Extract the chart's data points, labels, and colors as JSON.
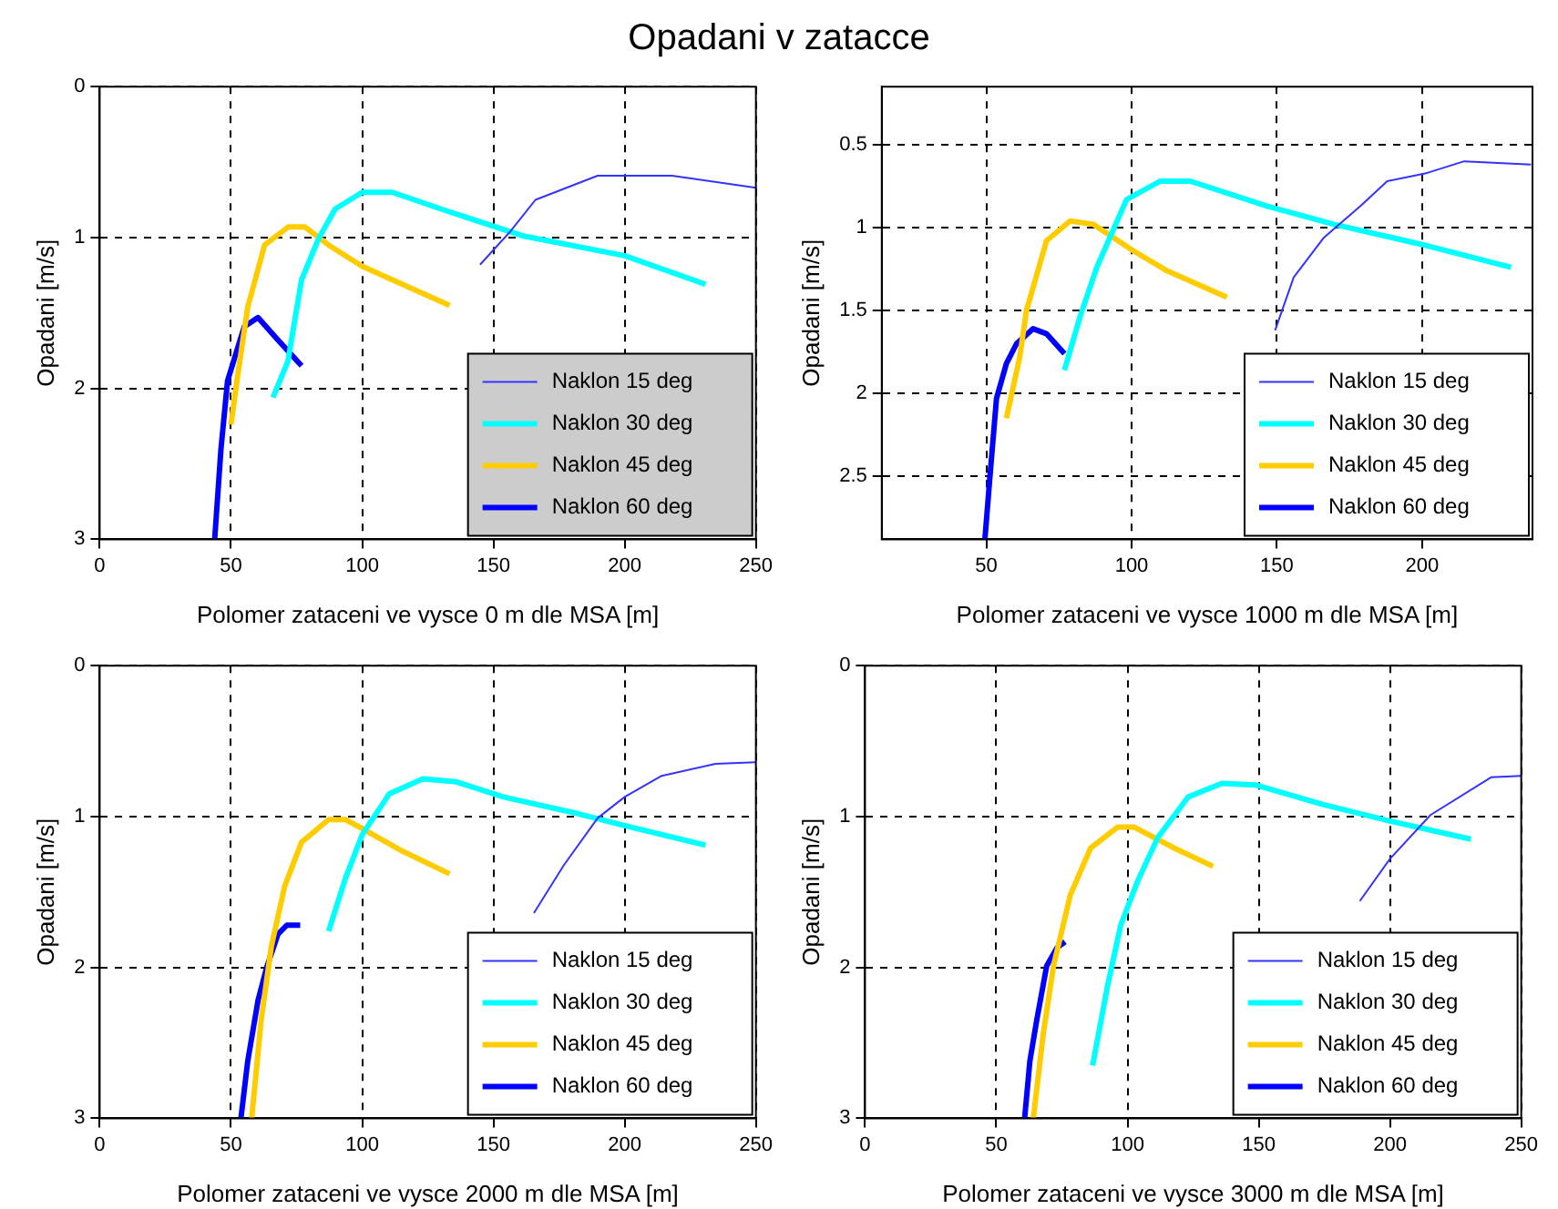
{
  "chart_data": [
    {
      "type": "line",
      "title": "Opadani v zatacce",
      "xlabel": "Polomer zataceni ve vysce 0 m dle MSA [m]",
      "ylabel": "Opadani [m/s]",
      "xlim": [
        0,
        250
      ],
      "xticks": [
        0,
        50,
        100,
        150,
        200,
        250
      ],
      "ylim": [
        3,
        0
      ],
      "yticks": [
        0,
        1,
        2,
        3
      ],
      "grid": true,
      "legend": "bottom right",
      "marker": "none",
      "line_style": "solid",
      "series": [
        {
          "name": "Naklon 15 deg",
          "color": "#3333ff",
          "x": [
            144.9,
            156.4,
            166,
            189.7,
            218,
            250
          ],
          "values": [
            1.18,
            0.96,
            0.75,
            0.59,
            0.59,
            0.67
          ]
        },
        {
          "name": "Naklon 30 deg",
          "color": "#00ffff",
          "x": [
            66,
            71.7,
            76.9,
            83.3,
            89.7,
            100,
            111.5,
            133.3,
            161.5,
            200,
            230.8
          ],
          "values": [
            2.06,
            1.82,
            1.28,
            1.01,
            0.81,
            0.7,
            0.7,
            0.83,
            0.99,
            1.12,
            1.31
          ]
        },
        {
          "name": "Naklon 45 deg",
          "color": "#ffcc00",
          "x": [
            50,
            52.6,
            56.4,
            62.8,
            71.8,
            78.2,
            87.2,
            100,
            133.3
          ],
          "values": [
            2.24,
            1.91,
            1.46,
            1.05,
            0.93,
            0.93,
            1.05,
            1.19,
            1.45
          ]
        },
        {
          "name": "Naklon 60 deg",
          "color": "#0000ff",
          "x": [
            43.8,
            46.2,
            48.7,
            52.6,
            55.1,
            60.3,
            68,
            76.9
          ],
          "values": [
            3,
            2.4,
            1.95,
            1.73,
            1.59,
            1.53,
            1.68,
            1.85
          ]
        }
      ]
    },
    {
      "type": "line",
      "xlabel": "Polomer zataceni ve vysce 1000 m dle MSA [m]",
      "ylabel": "Opadani [m/s]",
      "xlim": [
        14,
        238
      ],
      "xticks": [
        50,
        100,
        150,
        200
      ],
      "ylim": [
        2.88,
        0.15
      ],
      "yticks": [
        0.5,
        1,
        1.5,
        2,
        2.5
      ],
      "grid": true,
      "legend": "bottom right",
      "marker": "none",
      "line_style": "solid",
      "series": [
        {
          "name": "Naklon 15 deg",
          "color": "#3333ff",
          "x": [
            149.4,
            155.8,
            166.2,
            178.8,
            188,
            201.8,
            214.5,
            237.5
          ],
          "values": [
            1.62,
            1.3,
            1.06,
            0.87,
            0.72,
            0.67,
            0.6,
            0.62
          ]
        },
        {
          "name": "Naklon 30 deg",
          "color": "#00ffff",
          "x": [
            76.9,
            82.2,
            88,
            98.3,
            109.8,
            120.2,
            146.6,
            169.6,
            199.5,
            230.6
          ],
          "values": [
            1.86,
            1.54,
            1.24,
            0.83,
            0.72,
            0.72,
            0.87,
            0.98,
            1.1,
            1.24
          ]
        },
        {
          "name": "Naklon 45 deg",
          "color": "#ffcc00",
          "x": [
            56.9,
            61.5,
            63.8,
            70.7,
            78.8,
            86.8,
            100.6,
            112.1,
            132.8
          ],
          "values": [
            2.15,
            1.78,
            1.5,
            1.08,
            0.96,
            0.98,
            1.14,
            1.26,
            1.42
          ]
        },
        {
          "name": "Naklon 60 deg",
          "color": "#0000ff",
          "x": [
            49.5,
            51.2,
            53.5,
            56.9,
            60.4,
            66.1,
            70.7,
            76.9
          ],
          "values": [
            2.88,
            2.51,
            2.03,
            1.82,
            1.7,
            1.61,
            1.64,
            1.76
          ]
        }
      ]
    },
    {
      "type": "line",
      "xlabel": "Polomer zataceni ve vysce 2000 m dle MSA [m]",
      "ylabel": "Opadani [m/s]",
      "xlim": [
        0,
        250
      ],
      "xticks": [
        0,
        50,
        100,
        150,
        200,
        250
      ],
      "ylim": [
        3,
        0
      ],
      "yticks": [
        0,
        1,
        2,
        3
      ],
      "grid": true,
      "legend": "bottom right",
      "marker": "none",
      "line_style": "solid",
      "series": [
        {
          "name": "Naklon 15 deg",
          "color": "#3333ff",
          "x": [
            165.4,
            176.9,
            189.7,
            200,
            214.1,
            234.6,
            250
          ],
          "values": [
            1.64,
            1.32,
            1.01,
            0.87,
            0.73,
            0.65,
            0.64
          ]
        },
        {
          "name": "Naklon 30 deg",
          "color": "#00ffff",
          "x": [
            87.2,
            93.6,
            100,
            110.3,
            123.1,
            135.9,
            153.8,
            179.5,
            200,
            230.8
          ],
          "values": [
            1.76,
            1.41,
            1.12,
            0.85,
            0.75,
            0.77,
            0.87,
            0.97,
            1.06,
            1.19
          ]
        },
        {
          "name": "Naklon 45 deg",
          "color": "#ffcc00",
          "x": [
            57.9,
            61.5,
            65.4,
            70.5,
            76.9,
            87.2,
            93.6,
            100,
            115.4,
            133.3
          ],
          "values": [
            3,
            2.35,
            1.86,
            1.46,
            1.17,
            1.02,
            1.02,
            1.08,
            1.23,
            1.38
          ]
        },
        {
          "name": "Naklon 60 deg",
          "color": "#0000ff",
          "x": [
            53.8,
            56.4,
            60.3,
            63.6,
            67.9,
            71.3,
            76.4
          ],
          "values": [
            3,
            2.62,
            2.22,
            2,
            1.78,
            1.72,
            1.72
          ]
        }
      ]
    },
    {
      "type": "line",
      "xlabel": "Polomer zataceni ve vysce 3000 m dle MSA [m]",
      "ylabel": "Opadani [m/s]",
      "xlim": [
        0,
        250
      ],
      "xticks": [
        0,
        50,
        100,
        150,
        200,
        250
      ],
      "ylim": [
        3,
        0
      ],
      "yticks": [
        0,
        1,
        2,
        3
      ],
      "grid": true,
      "legend": "bottom right",
      "marker": "none",
      "line_style": "solid",
      "series": [
        {
          "name": "Naklon 15 deg",
          "color": "#3333ff",
          "x": [
            188.5,
            200,
            215.4,
            238.5,
            250
          ],
          "values": [
            1.56,
            1.28,
            0.99,
            0.74,
            0.73
          ]
        },
        {
          "name": "Naklon 30 deg",
          "color": "#00ffff",
          "x": [
            86.7,
            92.3,
            97.4,
            103.8,
            111.5,
            123.1,
            135.9,
            148.7,
            174.4,
            200,
            230.8
          ],
          "values": [
            2.65,
            2.13,
            1.72,
            1.43,
            1.14,
            0.87,
            0.78,
            0.79,
            0.92,
            1.03,
            1.15
          ]
        },
        {
          "name": "Naklon 45 deg",
          "color": "#ffcc00",
          "x": [
            64.1,
            67.9,
            71.8,
            78.2,
            85.9,
            96.2,
            102.6,
            117.9,
            132.6
          ],
          "values": [
            3,
            2.44,
            1.99,
            1.52,
            1.21,
            1.07,
            1.07,
            1.21,
            1.33
          ]
        },
        {
          "name": "Naklon 60 deg",
          "color": "#0000ff",
          "x": [
            60.8,
            62.8,
            65.4,
            69.2,
            73.1,
            76.2
          ],
          "values": [
            3,
            2.62,
            2.35,
            1.99,
            1.87,
            1.83
          ]
        }
      ]
    }
  ]
}
